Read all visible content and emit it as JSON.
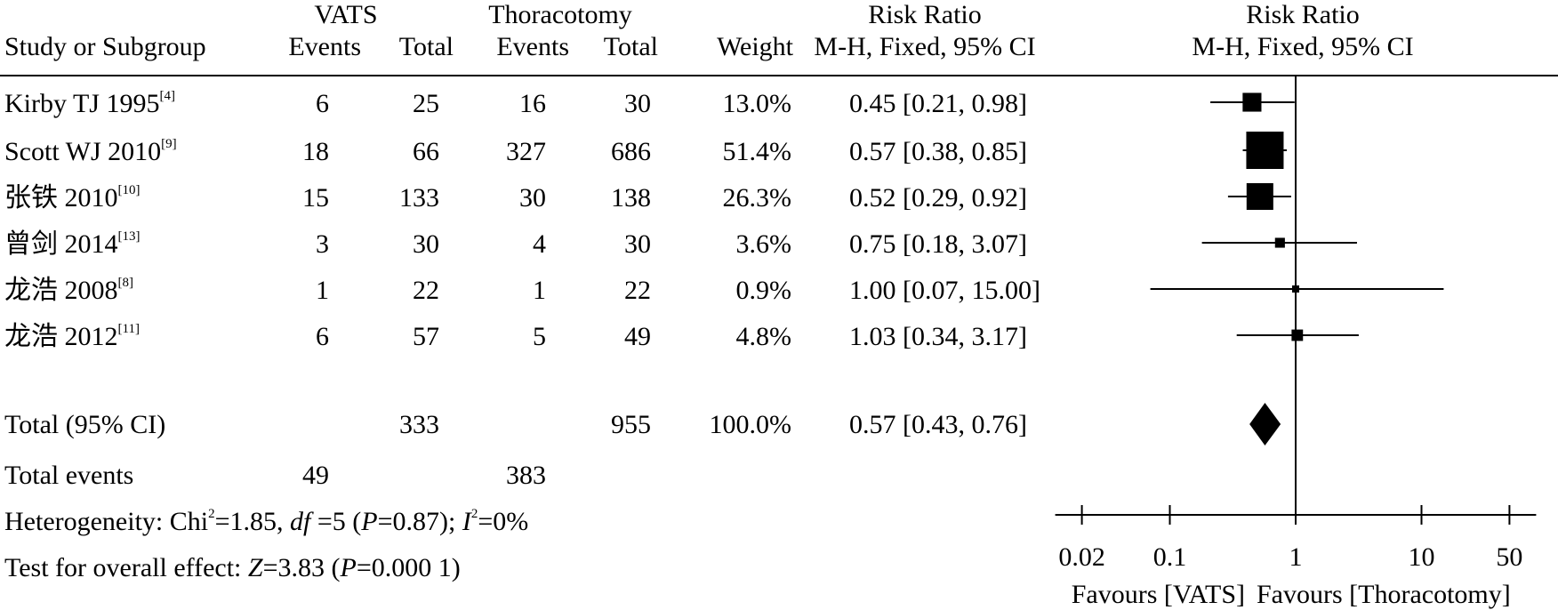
{
  "header": {
    "group_vats": "VATS",
    "group_thor": "Thoracotomy",
    "rr_title": "Risk Ratio",
    "rr_method": "M-H, Fixed, 95% CI",
    "plot_title": "Risk Ratio",
    "plot_method": "M-H, Fixed, 95% CI",
    "study_col": "Study or Subgroup",
    "events": "Events",
    "total": "Total",
    "weight": "Weight"
  },
  "total_row": {
    "label": "Total (95% CI)",
    "vats_total": "333",
    "thor_total": "955",
    "weight": "100.0%",
    "ci_text": "0.57 [0.43, 0.76]"
  },
  "events_row": {
    "label": "Total events",
    "vats_events": "49",
    "thor_events": "383"
  },
  "heterogeneity": {
    "prefix": "Heterogeneity: Chi",
    "exp": "2",
    "chi_val": "=1.85, ",
    "df_label": "df",
    "df_val": " =5 (",
    "p_label": "P",
    "p_val": "=0.87); ",
    "i_label": "I",
    "i_exp": "2",
    "i_val": "=0%"
  },
  "overall": {
    "prefix": "Test for overall effect: ",
    "z_label": "Z",
    "z_val": "=3.83 (",
    "p_label": "P",
    "p_val": "=0.000 1)"
  },
  "axis": {
    "favours_left": "Favours [VATS]",
    "favours_right": "Favours [Thoracotomy]"
  },
  "chart_data": {
    "type": "forest",
    "scale": "log",
    "xlim": [
      0.02,
      50
    ],
    "ticks": [
      0.02,
      0.1,
      1,
      10,
      50
    ],
    "tick_labels": [
      "0.02",
      "0.1",
      "1",
      "10",
      "50"
    ],
    "reference_line": 1,
    "studies": [
      {
        "name": "Kirby TJ 1995",
        "ref": "[4]",
        "vats_events": 6,
        "vats_total": 25,
        "thor_events": 16,
        "thor_total": 30,
        "weight": "13.0%",
        "weight_value": 13.0,
        "rr": 0.45,
        "ci_low": 0.21,
        "ci_high": 0.98,
        "ci_text": "0.45 [0.21, 0.98]"
      },
      {
        "name": "Scott WJ 2010",
        "ref": "[9]",
        "vats_events": 18,
        "vats_total": 66,
        "thor_events": 327,
        "thor_total": 686,
        "weight": "51.4%",
        "weight_value": 51.4,
        "rr": 0.57,
        "ci_low": 0.38,
        "ci_high": 0.85,
        "ci_text": "0.57 [0.38, 0.85]"
      },
      {
        "name": "张铁 2010",
        "ref": "[10]",
        "vats_events": 15,
        "vats_total": 133,
        "thor_events": 30,
        "thor_total": 138,
        "weight": "26.3%",
        "weight_value": 26.3,
        "rr": 0.52,
        "ci_low": 0.29,
        "ci_high": 0.92,
        "ci_text": "0.52 [0.29, 0.92]"
      },
      {
        "name": "曾剑 2014",
        "ref": "[13]",
        "vats_events": 3,
        "vats_total": 30,
        "thor_events": 4,
        "thor_total": 30,
        "weight": "3.6%",
        "weight_value": 3.6,
        "rr": 0.75,
        "ci_low": 0.18,
        "ci_high": 3.07,
        "ci_text": "0.75 [0.18, 3.07]"
      },
      {
        "name": "龙浩 2008",
        "ref": "[8]",
        "vats_events": 1,
        "vats_total": 22,
        "thor_events": 1,
        "thor_total": 22,
        "weight": "0.9%",
        "weight_value": 0.9,
        "rr": 1.0,
        "ci_low": 0.07,
        "ci_high": 15.0,
        "ci_text": "1.00 [0.07, 15.00]"
      },
      {
        "name": "龙浩 2012",
        "ref": "[11]",
        "vats_events": 6,
        "vats_total": 57,
        "thor_events": 5,
        "thor_total": 49,
        "weight": "4.8%",
        "weight_value": 4.8,
        "rr": 1.03,
        "ci_low": 0.34,
        "ci_high": 3.17,
        "ci_text": "1.03 [0.34, 3.17]"
      }
    ],
    "pooled": {
      "rr": 0.57,
      "ci_low": 0.43,
      "ci_high": 0.76
    }
  }
}
